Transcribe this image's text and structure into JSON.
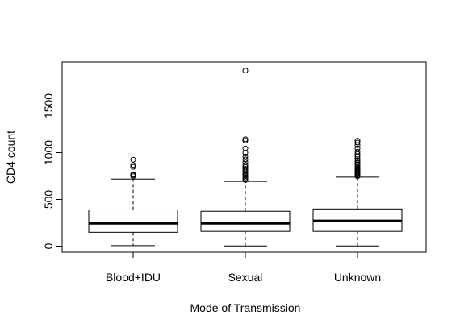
{
  "chart_data": {
    "type": "box",
    "title": "",
    "xlabel": "Mode of Transmission",
    "ylabel": "CD4 count",
    "ylim": [
      -80,
      1950
    ],
    "yticks": [
      0,
      500,
      1000,
      1500
    ],
    "ytick_labels": [
      "0",
      "500",
      "1000",
      "1500"
    ],
    "grid": false,
    "legend": "none",
    "categories": [
      "Blood+IDU",
      "Sexual",
      "Unknown"
    ],
    "boxes": [
      {
        "category": "Blood+IDU",
        "min": 5,
        "q1": 148,
        "median": 243,
        "q3": 388,
        "whisker_high": 718,
        "outliers": [
          748,
          760,
          768,
          848,
          868,
          925
        ]
      },
      {
        "category": "Sexual",
        "min": 2,
        "q1": 158,
        "median": 243,
        "q3": 373,
        "whisker_high": 693,
        "outliers": [
          708,
          720,
          735,
          750,
          765,
          780,
          795,
          810,
          828,
          848,
          868,
          898,
          928,
          958,
          1000,
          1045,
          1128,
          1143,
          1878
        ]
      },
      {
        "category": "Unknown",
        "min": 2,
        "q1": 158,
        "median": 270,
        "q3": 398,
        "whisker_high": 738,
        "outliers": [
          748,
          758,
          768,
          778,
          788,
          798,
          808,
          820,
          832,
          845,
          858,
          873,
          888,
          903,
          920,
          940,
          962,
          985,
          1010,
          1045,
          1080,
          1108,
          1128
        ]
      }
    ]
  }
}
